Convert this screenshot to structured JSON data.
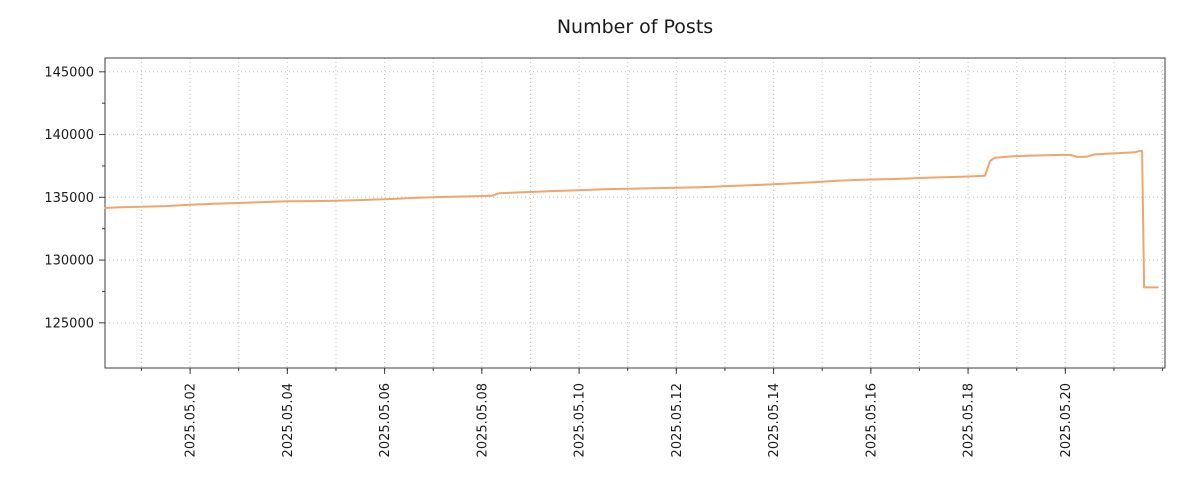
{
  "chart_data": {
    "type": "line",
    "title": "Number of Posts",
    "xlabel": "",
    "ylabel": "",
    "legend": "none",
    "grid": "dotted",
    "line_color": "#f1a46e",
    "x_domain": [
      0.25,
      22.05
    ],
    "y_domain": [
      121400,
      146100
    ],
    "x_unit": "days since 2025.05.00",
    "y_ticks": [
      125000,
      130000,
      135000,
      140000,
      145000
    ],
    "y_minor_ticks": [
      127500,
      132500,
      137500,
      142500
    ],
    "x_major_ticks": [
      {
        "day": 2,
        "label": "2025.05.02"
      },
      {
        "day": 4,
        "label": "2025.05.04"
      },
      {
        "day": 6,
        "label": "2025.05.06"
      },
      {
        "day": 8,
        "label": "2025.05.08"
      },
      {
        "day": 10,
        "label": "2025.05.10"
      },
      {
        "day": 12,
        "label": "2025.05.12"
      },
      {
        "day": 14,
        "label": "2025.05.14"
      },
      {
        "day": 16,
        "label": "2025.05.16"
      },
      {
        "day": 18,
        "label": "2025.05.18"
      },
      {
        "day": 20,
        "label": "2025.05.20"
      }
    ],
    "x_minor_step": 1,
    "series": [
      {
        "name": "posts",
        "color": "#f1a46e",
        "points": [
          [
            0.25,
            134150
          ],
          [
            0.5,
            134200
          ],
          [
            1,
            134250
          ],
          [
            1.5,
            134300
          ],
          [
            2,
            134400
          ],
          [
            2.5,
            134480
          ],
          [
            3,
            134550
          ],
          [
            3.5,
            134620
          ],
          [
            4,
            134680
          ],
          [
            4.5,
            134700
          ],
          [
            5,
            134720
          ],
          [
            5.5,
            134780
          ],
          [
            6,
            134850
          ],
          [
            6.3,
            134900
          ],
          [
            6.6,
            134950
          ],
          [
            7,
            135000
          ],
          [
            7.5,
            135060
          ],
          [
            8,
            135100
          ],
          [
            8.2,
            135120
          ],
          [
            8.35,
            135320
          ],
          [
            8.7,
            135380
          ],
          [
            9,
            135420
          ],
          [
            9.5,
            135500
          ],
          [
            10,
            135570
          ],
          [
            10.5,
            135640
          ],
          [
            11,
            135690
          ],
          [
            11.5,
            135720
          ],
          [
            12,
            135760
          ],
          [
            12.5,
            135800
          ],
          [
            13,
            135880
          ],
          [
            13.5,
            135960
          ],
          [
            14,
            136040
          ],
          [
            14.5,
            136140
          ],
          [
            15,
            136240
          ],
          [
            15.3,
            136320
          ],
          [
            15.7,
            136380
          ],
          [
            16,
            136420
          ],
          [
            16.5,
            136460
          ],
          [
            17,
            136540
          ],
          [
            17.3,
            136580
          ],
          [
            17.7,
            136620
          ],
          [
            18,
            136660
          ],
          [
            18.35,
            136720
          ],
          [
            18.45,
            137900
          ],
          [
            18.55,
            138150
          ],
          [
            18.8,
            138230
          ],
          [
            19,
            138280
          ],
          [
            19.3,
            138320
          ],
          [
            19.6,
            138350
          ],
          [
            19.9,
            138380
          ],
          [
            20.1,
            138380
          ],
          [
            20.25,
            138220
          ],
          [
            20.45,
            138240
          ],
          [
            20.6,
            138420
          ],
          [
            20.9,
            138480
          ],
          [
            21.1,
            138520
          ],
          [
            21.3,
            138560
          ],
          [
            21.45,
            138600
          ],
          [
            21.52,
            138680
          ],
          [
            21.58,
            138680
          ],
          [
            21.62,
            127820
          ],
          [
            21.9,
            127820
          ]
        ]
      }
    ]
  }
}
